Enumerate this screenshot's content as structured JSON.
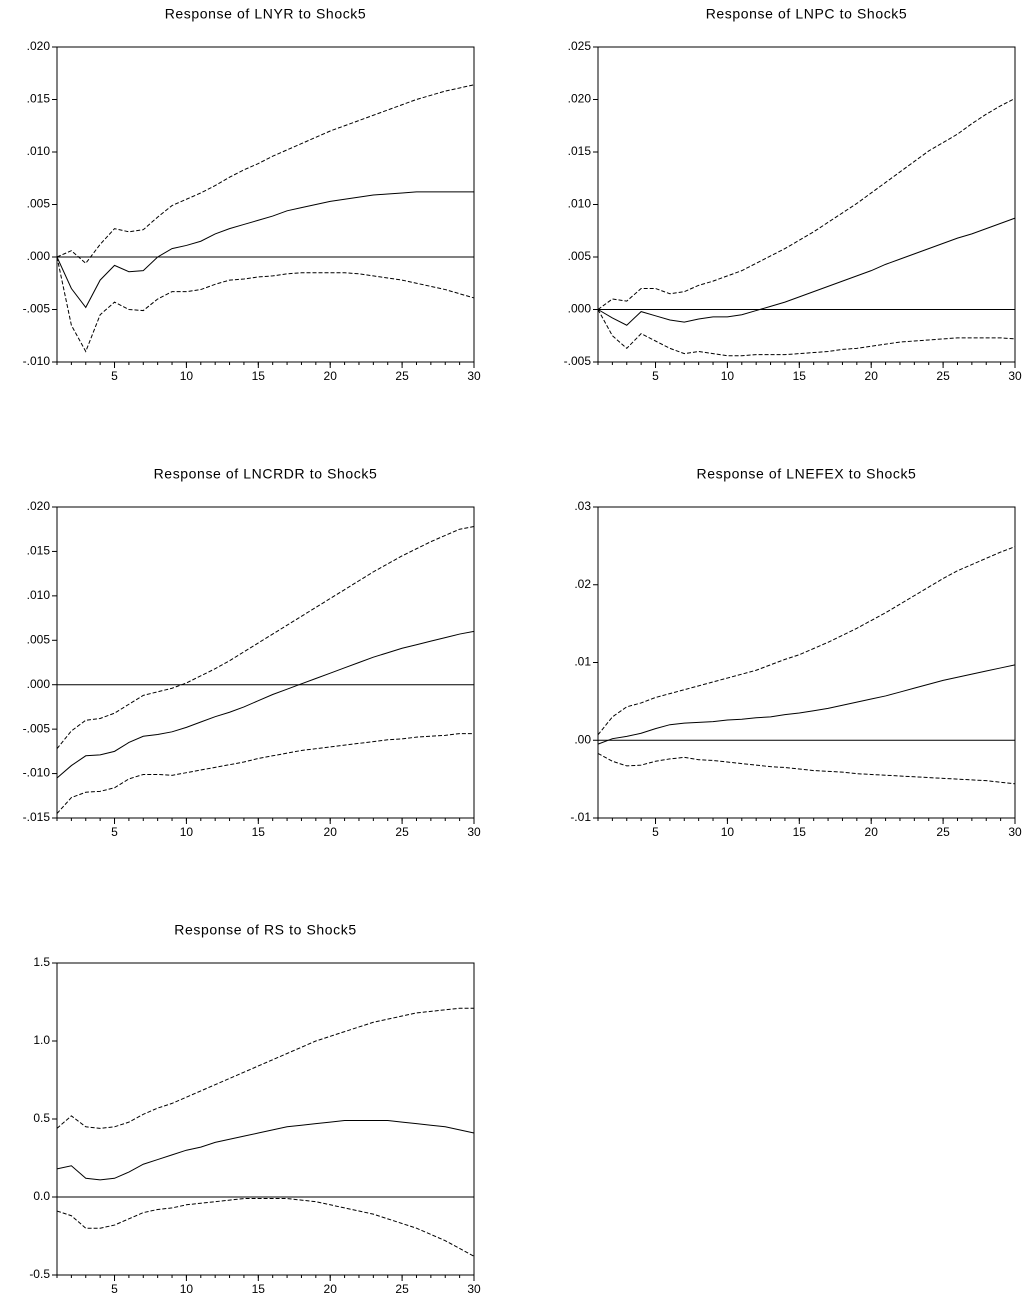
{
  "chart_data": [
    {
      "type": "line",
      "title": "Response of LNYR to Shock5",
      "x": [
        1,
        2,
        3,
        4,
        5,
        6,
        7,
        8,
        9,
        10,
        11,
        12,
        13,
        14,
        15,
        16,
        17,
        18,
        19,
        20,
        21,
        22,
        23,
        24,
        25,
        26,
        27,
        28,
        29,
        30
      ],
      "xlim": [
        1,
        30
      ],
      "xticks": [
        5,
        10,
        15,
        20,
        25,
        30
      ],
      "ylim": [
        -0.01,
        0.02
      ],
      "yticks": [
        {
          "value": -0.01,
          "label": "-.010"
        },
        {
          "value": -0.005,
          "label": "-.005"
        },
        {
          "value": 0,
          "label": ".000"
        },
        {
          "value": 0.005,
          "label": ".005"
        },
        {
          "value": 0.01,
          "label": ".010"
        },
        {
          "value": 0.015,
          "label": ".015"
        },
        {
          "value": 0.02,
          "label": ".020"
        }
      ],
      "zero_line": true,
      "series": [
        {
          "color": "#000000",
          "dash": "solid",
          "values": [
            0,
            -0.003,
            -0.0048,
            -0.0022,
            -0.0008,
            -0.0014,
            -0.0013,
            0,
            0.0008,
            0.0011,
            0.0015,
            0.0022,
            0.0027,
            0.0031,
            0.0035,
            0.0039,
            0.0044,
            0.0047,
            0.005,
            0.0053,
            0.0055,
            0.0057,
            0.0059,
            0.006,
            0.0061,
            0.0062,
            0.0062,
            0.0062,
            0.0062,
            0.0062
          ]
        },
        {
          "color": "#000000",
          "dash": "dashed",
          "values": [
            0,
            0.0006,
            -0.0006,
            0.0012,
            0.0027,
            0.0024,
            0.0026,
            0.0038,
            0.0049,
            0.0055,
            0.0061,
            0.0068,
            0.0076,
            0.0083,
            0.0089,
            0.0096,
            0.0102,
            0.0108,
            0.0114,
            0.012,
            0.0125,
            0.013,
            0.0135,
            0.014,
            0.0145,
            0.015,
            0.0154,
            0.0158,
            0.0161,
            0.0164
          ]
        },
        {
          "color": "#000000",
          "dash": "dashed",
          "values": [
            0,
            -0.0065,
            -0.009,
            -0.0055,
            -0.0043,
            -0.005,
            -0.0051,
            -0.004,
            -0.0033,
            -0.0033,
            -0.0031,
            -0.0026,
            -0.0022,
            -0.0021,
            -0.0019,
            -0.0018,
            -0.0016,
            -0.0015,
            -0.0015,
            -0.0015,
            -0.0015,
            -0.0016,
            -0.0018,
            -0.002,
            -0.0022,
            -0.0025,
            -0.0028,
            -0.0031,
            -0.0035,
            -0.0039
          ]
        }
      ]
    },
    {
      "type": "line",
      "title": "Response of LNPC to Shock5",
      "x": [
        1,
        2,
        3,
        4,
        5,
        6,
        7,
        8,
        9,
        10,
        11,
        12,
        13,
        14,
        15,
        16,
        17,
        18,
        19,
        20,
        21,
        22,
        23,
        24,
        25,
        26,
        27,
        28,
        29,
        30
      ],
      "xlim": [
        1,
        30
      ],
      "xticks": [
        5,
        10,
        15,
        20,
        25,
        30
      ],
      "ylim": [
        -0.005,
        0.025
      ],
      "yticks": [
        {
          "value": -0.005,
          "label": "-.005"
        },
        {
          "value": 0,
          "label": ".000"
        },
        {
          "value": 0.005,
          "label": ".005"
        },
        {
          "value": 0.01,
          "label": ".010"
        },
        {
          "value": 0.015,
          "label": ".015"
        },
        {
          "value": 0.02,
          "label": ".020"
        },
        {
          "value": 0.025,
          "label": ".025"
        }
      ],
      "zero_line": true,
      "series": [
        {
          "color": "#000000",
          "dash": "solid",
          "values": [
            0,
            -0.0008,
            -0.0015,
            -0.0002,
            -0.0006,
            -0.001,
            -0.0012,
            -0.0009,
            -0.0007,
            -0.0007,
            -0.0005,
            -0.0001,
            0.0003,
            0.0007,
            0.0012,
            0.0017,
            0.0022,
            0.0027,
            0.0032,
            0.0037,
            0.0043,
            0.0048,
            0.0053,
            0.0058,
            0.0063,
            0.0068,
            0.0072,
            0.0077,
            0.0082,
            0.0087
          ]
        },
        {
          "color": "#000000",
          "dash": "dashed",
          "values": [
            0,
            0.001,
            0.0008,
            0.002,
            0.002,
            0.0015,
            0.0017,
            0.0023,
            0.0027,
            0.0032,
            0.0037,
            0.0044,
            0.0051,
            0.0058,
            0.0066,
            0.0074,
            0.0083,
            0.0092,
            0.0101,
            0.0111,
            0.0121,
            0.0131,
            0.0141,
            0.0151,
            0.0159,
            0.0167,
            0.0177,
            0.0186,
            0.0194,
            0.0201
          ]
        },
        {
          "color": "#000000",
          "dash": "dashed",
          "values": [
            0,
            -0.0025,
            -0.0037,
            -0.0023,
            -0.003,
            -0.0037,
            -0.0042,
            -0.004,
            -0.0042,
            -0.0044,
            -0.0044,
            -0.0043,
            -0.0043,
            -0.0043,
            -0.0042,
            -0.0041,
            -0.004,
            -0.0038,
            -0.0037,
            -0.0035,
            -0.0033,
            -0.0031,
            -0.003,
            -0.0029,
            -0.0028,
            -0.0027,
            -0.0027,
            -0.0027,
            -0.0027,
            -0.0028
          ]
        }
      ]
    },
    {
      "type": "line",
      "title": "Response of LNCRDR to Shock5",
      "x": [
        1,
        2,
        3,
        4,
        5,
        6,
        7,
        8,
        9,
        10,
        11,
        12,
        13,
        14,
        15,
        16,
        17,
        18,
        19,
        20,
        21,
        22,
        23,
        24,
        25,
        26,
        27,
        28,
        29,
        30
      ],
      "xlim": [
        1,
        30
      ],
      "xticks": [
        5,
        10,
        15,
        20,
        25,
        30
      ],
      "ylim": [
        -0.015,
        0.02
      ],
      "yticks": [
        {
          "value": -0.015,
          "label": "-.015"
        },
        {
          "value": -0.01,
          "label": "-.010"
        },
        {
          "value": -0.005,
          "label": "-.005"
        },
        {
          "value": 0,
          "label": ".000"
        },
        {
          "value": 0.005,
          "label": ".005"
        },
        {
          "value": 0.01,
          "label": ".010"
        },
        {
          "value": 0.015,
          "label": ".015"
        },
        {
          "value": 0.02,
          "label": ".020"
        }
      ],
      "zero_line": true,
      "series": [
        {
          "color": "#000000",
          "dash": "solid",
          "values": [
            -0.0105,
            -0.0091,
            -0.008,
            -0.0079,
            -0.0075,
            -0.0065,
            -0.0058,
            -0.0056,
            -0.0053,
            -0.0048,
            -0.0042,
            -0.0036,
            -0.0031,
            -0.0025,
            -0.0018,
            -0.0011,
            -0.0005,
            0.0001,
            0.0007,
            0.0013,
            0.0019,
            0.0025,
            0.0031,
            0.0036,
            0.0041,
            0.0045,
            0.0049,
            0.0053,
            0.0057,
            0.006
          ]
        },
        {
          "color": "#000000",
          "dash": "dashed",
          "values": [
            -0.0072,
            -0.0052,
            -0.004,
            -0.0038,
            -0.0032,
            -0.0022,
            -0.0012,
            -0.0008,
            -0.0004,
            0.0002,
            0.001,
            0.0018,
            0.0027,
            0.0037,
            0.0047,
            0.0057,
            0.0067,
            0.0077,
            0.0087,
            0.0097,
            0.0107,
            0.0117,
            0.0127,
            0.0136,
            0.0145,
            0.0153,
            0.0161,
            0.0168,
            0.0175,
            0.0178
          ]
        },
        {
          "color": "#000000",
          "dash": "dashed",
          "values": [
            -0.0145,
            -0.0127,
            -0.0121,
            -0.012,
            -0.0116,
            -0.0106,
            -0.0101,
            -0.0101,
            -0.0102,
            -0.0099,
            -0.0096,
            -0.0093,
            -0.009,
            -0.0087,
            -0.0083,
            -0.008,
            -0.0077,
            -0.0074,
            -0.0072,
            -0.007,
            -0.0068,
            -0.0066,
            -0.0064,
            -0.0062,
            -0.0061,
            -0.0059,
            -0.0058,
            -0.0057,
            -0.0055,
            -0.0055
          ]
        }
      ]
    },
    {
      "type": "line",
      "title": "Response of LNEFEX to Shock5",
      "x": [
        1,
        2,
        3,
        4,
        5,
        6,
        7,
        8,
        9,
        10,
        11,
        12,
        13,
        14,
        15,
        16,
        17,
        18,
        19,
        20,
        21,
        22,
        23,
        24,
        25,
        26,
        27,
        28,
        29,
        30
      ],
      "xlim": [
        1,
        30
      ],
      "xticks": [
        5,
        10,
        15,
        20,
        25,
        30
      ],
      "ylim": [
        -0.01,
        0.03
      ],
      "yticks": [
        {
          "value": -0.01,
          "label": "-.01"
        },
        {
          "value": 0,
          "label": ".00"
        },
        {
          "value": 0.01,
          "label": ".01"
        },
        {
          "value": 0.02,
          "label": ".02"
        },
        {
          "value": 0.03,
          "label": ".03"
        }
      ],
      "zero_line": true,
      "series": [
        {
          "color": "#000000",
          "dash": "solid",
          "values": [
            -0.0005,
            0.0002,
            0.0005,
            0.0009,
            0.0015,
            0.002,
            0.0022,
            0.0023,
            0.0024,
            0.0026,
            0.0027,
            0.0029,
            0.003,
            0.0033,
            0.0035,
            0.0038,
            0.0041,
            0.0045,
            0.0049,
            0.0053,
            0.0057,
            0.0062,
            0.0067,
            0.0072,
            0.0077,
            0.0081,
            0.0085,
            0.0089,
            0.0093,
            0.0097
          ]
        },
        {
          "color": "#000000",
          "dash": "dashed",
          "values": [
            0.0007,
            0.003,
            0.0043,
            0.0048,
            0.0055,
            0.006,
            0.0065,
            0.007,
            0.0075,
            0.008,
            0.0085,
            0.009,
            0.0097,
            0.0104,
            0.011,
            0.0118,
            0.0126,
            0.0135,
            0.0144,
            0.0154,
            0.0164,
            0.0175,
            0.0186,
            0.0197,
            0.0208,
            0.0218,
            0.0226,
            0.0234,
            0.0242,
            0.0249
          ]
        },
        {
          "color": "#000000",
          "dash": "dashed",
          "values": [
            -0.0017,
            -0.0027,
            -0.0033,
            -0.0032,
            -0.0027,
            -0.0024,
            -0.0022,
            -0.0025,
            -0.0026,
            -0.0028,
            -0.003,
            -0.0032,
            -0.0034,
            -0.0035,
            -0.0037,
            -0.0039,
            -0.004,
            -0.0041,
            -0.0043,
            -0.0044,
            -0.0045,
            -0.0046,
            -0.0047,
            -0.0048,
            -0.0049,
            -0.005,
            -0.0051,
            -0.0052,
            -0.0054,
            -0.0056
          ]
        }
      ]
    },
    {
      "type": "line",
      "title": "Response of RS to Shock5",
      "x": [
        1,
        2,
        3,
        4,
        5,
        6,
        7,
        8,
        9,
        10,
        11,
        12,
        13,
        14,
        15,
        16,
        17,
        18,
        19,
        20,
        21,
        22,
        23,
        24,
        25,
        26,
        27,
        28,
        29,
        30
      ],
      "xlim": [
        1,
        30
      ],
      "xticks": [
        5,
        10,
        15,
        20,
        25,
        30
      ],
      "ylim": [
        -0.5,
        1.5
      ],
      "yticks": [
        -0.5,
        {
          "value": 0,
          "label": "0.0"
        },
        0.5,
        {
          "value": 1,
          "label": "1.0"
        },
        1.5
      ],
      "zero_line": true,
      "series": [
        {
          "color": "#000000",
          "dash": "solid",
          "values": [
            0.18,
            0.2,
            0.12,
            0.11,
            0.12,
            0.16,
            0.21,
            0.24,
            0.27,
            0.3,
            0.32,
            0.35,
            0.37,
            0.39,
            0.41,
            0.43,
            0.45,
            0.46,
            0.47,
            0.48,
            0.49,
            0.49,
            0.49,
            0.49,
            0.48,
            0.47,
            0.46,
            0.45,
            0.43,
            0.41
          ]
        },
        {
          "color": "#000000",
          "dash": "dashed",
          "values": [
            0.44,
            0.52,
            0.45,
            0.44,
            0.45,
            0.48,
            0.53,
            0.57,
            0.6,
            0.64,
            0.68,
            0.72,
            0.76,
            0.8,
            0.84,
            0.88,
            0.92,
            0.96,
            1.0,
            1.03,
            1.06,
            1.09,
            1.12,
            1.14,
            1.16,
            1.18,
            1.19,
            1.2,
            1.21,
            1.21
          ]
        },
        {
          "color": "#000000",
          "dash": "dashed",
          "values": [
            -0.09,
            -0.12,
            -0.2,
            -0.2,
            -0.18,
            -0.14,
            -0.1,
            -0.08,
            -0.07,
            -0.05,
            -0.04,
            -0.03,
            -0.02,
            -0.01,
            -0.01,
            -0.01,
            -0.01,
            -0.02,
            -0.03,
            -0.05,
            -0.07,
            -0.09,
            -0.11,
            -0.14,
            -0.17,
            -0.2,
            -0.24,
            -0.28,
            -0.33,
            -0.38
          ]
        }
      ]
    }
  ]
}
